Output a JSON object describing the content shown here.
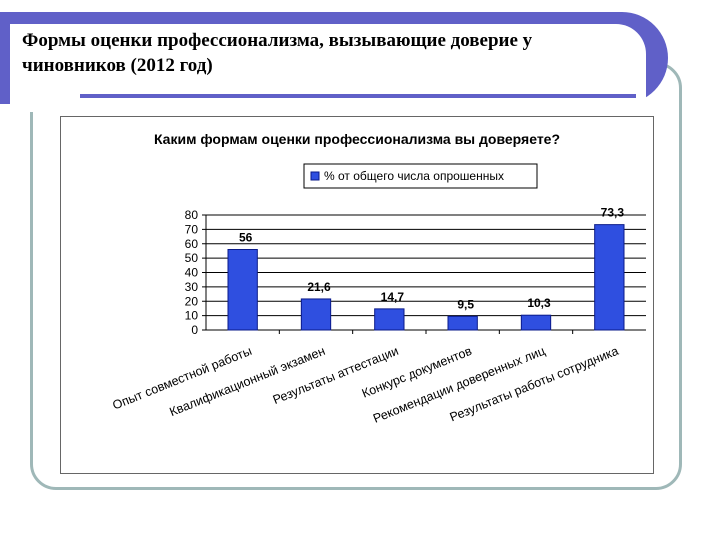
{
  "slide": {
    "title": "Формы оценки профессионализма, вызывающие доверие у чиновников (2012 год)"
  },
  "colors": {
    "header": "#6060c8",
    "frame_border": "#9fb8b8",
    "bar_fill": "#2f4fe0",
    "bar_stroke": "#0a1a8a",
    "legend_box": "#2f4fe0"
  },
  "chart_data": {
    "type": "bar",
    "title": "Каким формам оценки профессионализма вы доверяете?",
    "legend": [
      "% от общего числа опрошенных"
    ],
    "legend_position": "top",
    "categories": [
      "Опыт совместной работы",
      "Квалификационный экзамен",
      "Результаты аттестации",
      "Конкурс документов",
      "Рекомендации доверенных лиц",
      "Результаты работы сотрудника"
    ],
    "series": [
      {
        "name": "% от общего числа опрошенных",
        "values": [
          56,
          21.6,
          14.7,
          9.5,
          10.3,
          73.3
        ]
      }
    ],
    "data_labels": [
      "56",
      "21,6",
      "14,7",
      "9,5",
      "10,3",
      "73,3"
    ],
    "y_ticks": [
      "0",
      "10",
      "20",
      "30",
      "40",
      "50",
      "60",
      "70",
      "80"
    ],
    "ylim": [
      0,
      80
    ],
    "grid": true,
    "category_label_rotation": -22
  }
}
